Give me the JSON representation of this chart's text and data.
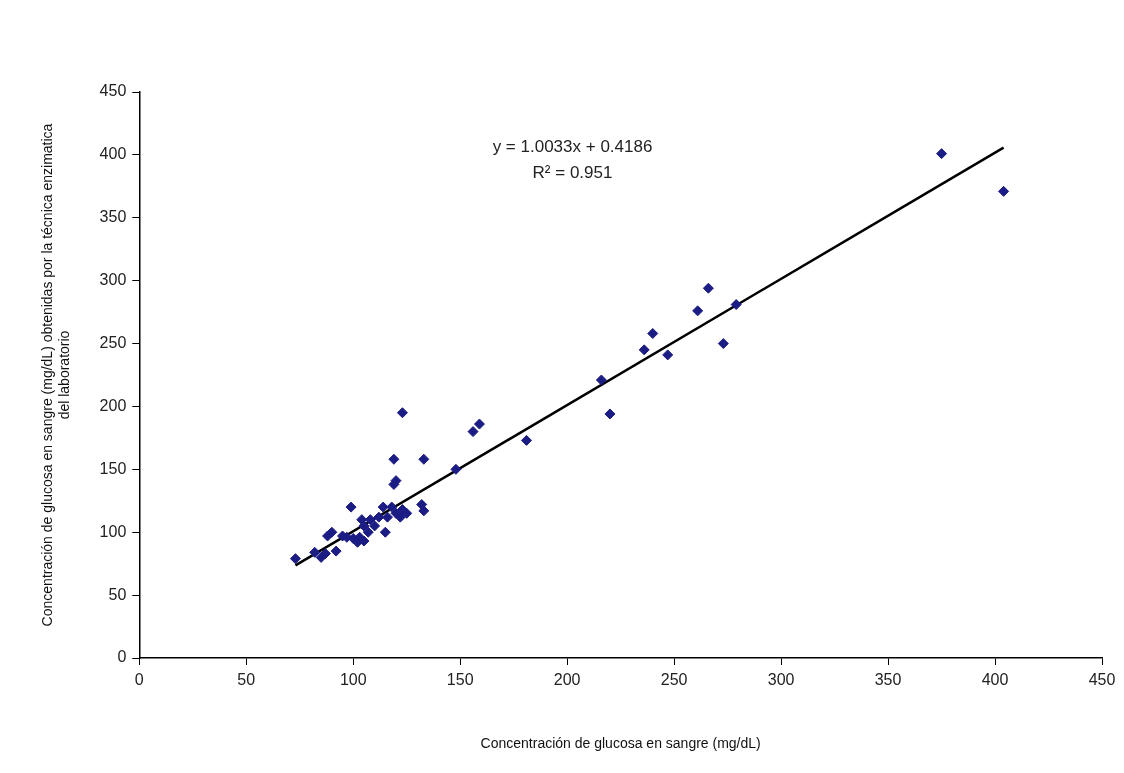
{
  "chart_data": {
    "type": "scatter",
    "xlabel": "Concentración de glucosa en sangre (mg/dL)",
    "ylabel": "Concentración de glucosa en sangre (mg/dL) obtenidas por la técnica enzimatica\ndel laboratorio",
    "xlim": [
      0,
      450
    ],
    "xticks": [
      0,
      50,
      100,
      150,
      200,
      250,
      300,
      350,
      400,
      450
    ],
    "ylim": [
      0,
      450
    ],
    "yticks": [
      0,
      50,
      100,
      150,
      200,
      250,
      300,
      350,
      400,
      450
    ],
    "grid": false,
    "legend": false,
    "marker": "diamond",
    "annotations": [
      "y = 1.0033x + 0.4186",
      "R² = 0.951"
    ],
    "series": [
      {
        "color": "#1c1c85",
        "x": [
          375,
          404,
          266,
          261,
          279,
          240,
          236,
          247,
          273,
          216,
          220,
          181,
          148,
          159,
          156,
          133,
          123,
          119,
          120,
          119,
          132,
          133,
          73,
          82,
          85,
          87,
          88,
          90,
          92,
          95,
          97,
          99,
          100,
          102,
          103,
          104,
          105,
          105,
          107,
          108,
          110,
          112,
          114,
          115,
          116,
          118,
          120,
          122,
          123,
          125
        ],
        "values": [
          401,
          371,
          294,
          276,
          281,
          258,
          245,
          241,
          250,
          221,
          194,
          173,
          150,
          186,
          180,
          158,
          195,
          158,
          141,
          138,
          122,
          117,
          79,
          84,
          80,
          83,
          97,
          100,
          85,
          97,
          96,
          120,
          95,
          92,
          96,
          110,
          105,
          93,
          100,
          110,
          105,
          112,
          120,
          100,
          112,
          120,
          115,
          112,
          118,
          115
        ]
      },
      {
        "type": "line",
        "color": "#000000",
        "marker": "none",
        "x": [
          73,
          404
        ],
        "values": [
          73.7,
          405.8
        ]
      }
    ]
  }
}
